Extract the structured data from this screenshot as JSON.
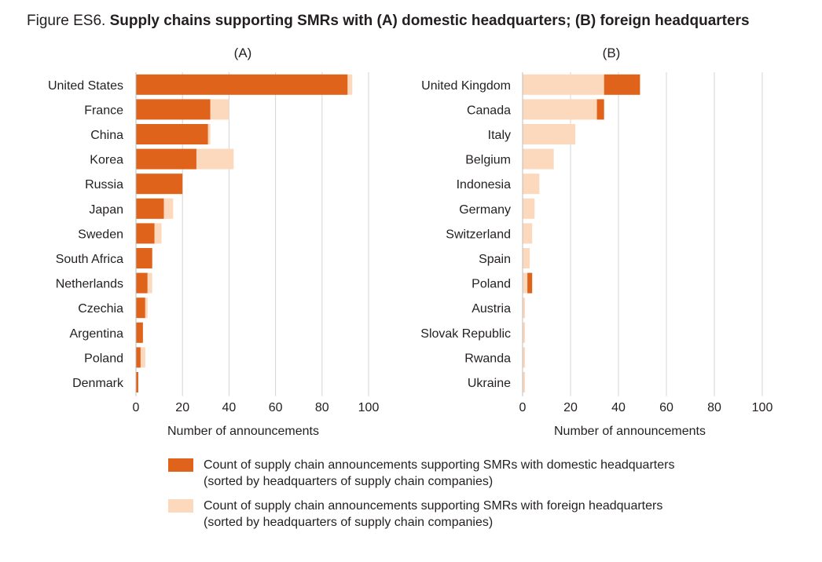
{
  "figure": {
    "lead": "Figure ES6.",
    "title": "Supply chains supporting SMRs with (A) domestic headquarters; (B) foreign headquarters"
  },
  "colors": {
    "domestic": "#e0631b",
    "foreign": "#fcd9bd",
    "grid": "#d4d4d4",
    "text": "#231f20"
  },
  "chart_data": [
    {
      "type": "bar",
      "orientation": "horizontal",
      "stacked": true,
      "title": "(A)",
      "xlabel": "Number of announcements",
      "xlim": [
        0,
        100
      ],
      "xticks": [
        0,
        20,
        40,
        60,
        80,
        100
      ],
      "grid": true,
      "categories": [
        "United States",
        "France",
        "China",
        "Korea",
        "Russia",
        "Japan",
        "Sweden",
        "South Africa",
        "Netherlands",
        "Czechia",
        "Argentina",
        "Poland",
        "Denmark"
      ],
      "series": [
        {
          "name": "domestic",
          "values": [
            91,
            32,
            31,
            26,
            20,
            12,
            8,
            7,
            5,
            4,
            3,
            2,
            1
          ]
        },
        {
          "name": "foreign",
          "values": [
            2,
            8,
            1,
            16,
            0,
            4,
            3,
            0,
            2,
            1,
            0,
            2,
            0
          ]
        }
      ]
    },
    {
      "type": "bar",
      "orientation": "horizontal",
      "stacked": true,
      "title": "(B)",
      "xlabel": "Number of announcements",
      "xlim": [
        0,
        100
      ],
      "xticks": [
        0,
        20,
        40,
        60,
        80,
        100
      ],
      "grid": true,
      "categories": [
        "United Kingdom",
        "Canada",
        "Italy",
        "Belgium",
        "Indonesia",
        "Germany",
        "Switzerland",
        "Spain",
        "Poland",
        "Austria",
        "Slovak Republic",
        "Rwanda",
        "Ukraine"
      ],
      "series": [
        {
          "name": "foreign",
          "values": [
            34,
            31,
            22,
            13,
            7,
            5,
            4,
            3,
            2,
            1,
            1,
            1,
            1
          ]
        },
        {
          "name": "domestic",
          "values": [
            15,
            3,
            0,
            0,
            0,
            0,
            0,
            0,
            2,
            0,
            0,
            0,
            0
          ]
        }
      ]
    }
  ],
  "legend": [
    {
      "key": "domestic",
      "line1": "Count of supply chain announcements supporting SMRs with domestic headquarters",
      "line2": "(sorted by headquarters of supply chain companies)"
    },
    {
      "key": "foreign",
      "line1": "Count of supply chain announcements supporting SMRs with foreign headquarters",
      "line2": "(sorted by headquarters of supply chain companies)"
    }
  ]
}
